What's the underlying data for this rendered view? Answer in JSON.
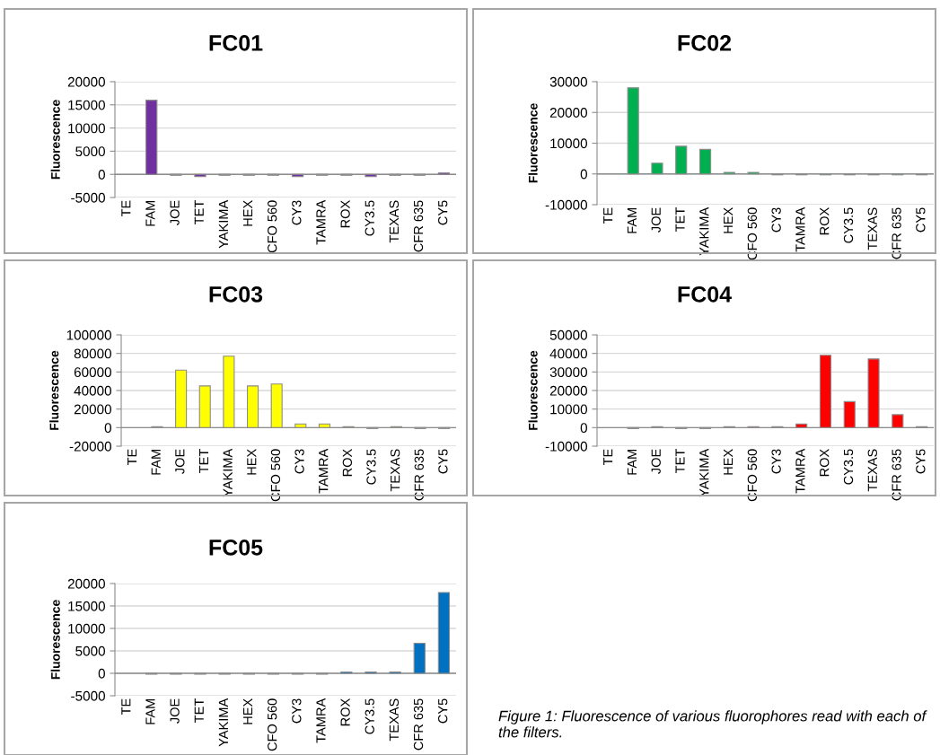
{
  "chart_data": [
    {
      "type": "bar",
      "title": "FC01",
      "ylabel": "Fluorescence",
      "categories": [
        "TE",
        "FAM",
        "JOE",
        "TET",
        "YAKIMA",
        "HEX",
        "CFO 560",
        "CY3",
        "TAMRA",
        "ROX",
        "CY3.5",
        "TEXAS",
        "CFR 635",
        "CY5"
      ],
      "color": "#7030a0",
      "values": [
        null,
        16000,
        -200,
        -500,
        -200,
        -200,
        -200,
        -500,
        -200,
        -200,
        -500,
        -200,
        -200,
        300
      ],
      "ylim": [
        -5000,
        20000
      ],
      "yticks": [
        -5000,
        0,
        5000,
        10000,
        15000,
        20000
      ],
      "grid": "y",
      "legend": false
    },
    {
      "type": "bar",
      "title": "FC02",
      "ylabel": "Fluorescence",
      "categories": [
        "TE",
        "FAM",
        "JOE",
        "TET",
        "YAKIMA",
        "HEX",
        "CFO 560",
        "CY3",
        "TAMRA",
        "ROX",
        "CY3.5",
        "TEXAS",
        "CFR 635",
        "CY5"
      ],
      "color": "#00b050",
      "values": [
        null,
        28000,
        3500,
        9000,
        8000,
        500,
        500,
        -300,
        -300,
        -300,
        -300,
        -300,
        -300,
        -300
      ],
      "ylim": [
        -10000,
        30000
      ],
      "yticks": [
        -10000,
        0,
        10000,
        20000,
        30000
      ],
      "grid": "y",
      "legend": false
    },
    {
      "type": "bar",
      "title": "FC03",
      "ylabel": "Fluorescence",
      "categories": [
        "TE",
        "FAM",
        "JOE",
        "TET",
        "YAKIMA",
        "HEX",
        "CFO 560",
        "CY3",
        "TAMRA",
        "ROX",
        "CY3.5",
        "TEXAS",
        "CFR 635",
        "CY5"
      ],
      "color": "#ffff00",
      "values": [
        null,
        1000,
        62000,
        45000,
        77000,
        45000,
        47000,
        4000,
        4000,
        1000,
        -1000,
        1000,
        -1000,
        -1000
      ],
      "ylim": [
        -20000,
        100000
      ],
      "yticks": [
        -20000,
        0,
        20000,
        40000,
        60000,
        80000,
        100000
      ],
      "grid": "y",
      "legend": false
    },
    {
      "type": "bar",
      "title": "FC04",
      "ylabel": "Fluorescence",
      "categories": [
        "TE",
        "FAM",
        "JOE",
        "TET",
        "YAKIMA",
        "HEX",
        "CFO 560",
        "CY3",
        "TAMRA",
        "ROX",
        "CY3.5",
        "TEXAS",
        "CFR 635",
        "CY5"
      ],
      "color": "#ff0000",
      "values": [
        null,
        -500,
        500,
        -500,
        -500,
        500,
        500,
        500,
        2000,
        39000,
        14000,
        37000,
        7000,
        500
      ],
      "ylim": [
        -10000,
        50000
      ],
      "yticks": [
        -10000,
        0,
        10000,
        20000,
        30000,
        40000,
        50000
      ],
      "grid": "y",
      "legend": false
    },
    {
      "type": "bar",
      "title": "FC05",
      "ylabel": "Fluorescence",
      "categories": [
        "TE",
        "FAM",
        "JOE",
        "TET",
        "YAKIMA",
        "HEX",
        "CFO 560",
        "CY3",
        "TAMRA",
        "ROX",
        "CY3.5",
        "TEXAS",
        "CFR 635",
        "CY5"
      ],
      "color": "#0070c0",
      "values": [
        null,
        -200,
        -200,
        -200,
        -200,
        -200,
        -200,
        -200,
        -200,
        300,
        300,
        300,
        6700,
        18000
      ],
      "ylim": [
        -5000,
        20000
      ],
      "yticks": [
        -5000,
        0,
        5000,
        10000,
        15000,
        20000
      ],
      "grid": "y",
      "legend": false,
      "annotations": [
        "Figure 1: Fluorescence of various fluorophores read with each of the filters."
      ]
    }
  ]
}
